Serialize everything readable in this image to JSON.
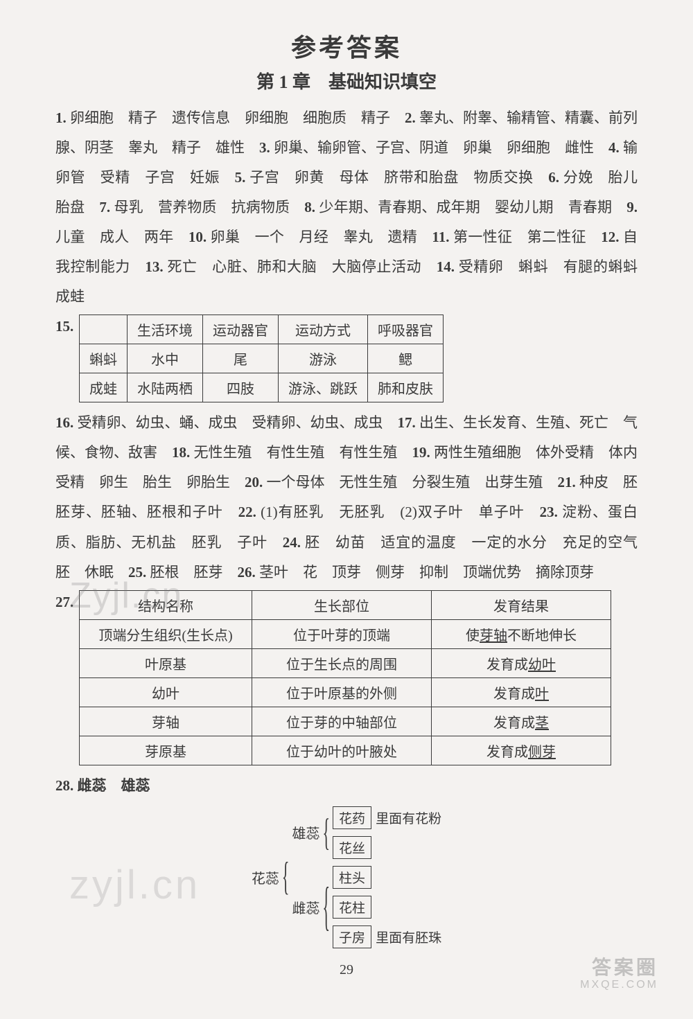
{
  "title": "参考答案",
  "subtitle": "第 1 章　基础知识填空",
  "paragraph1_items": [
    {
      "n": "1.",
      "t": "卵细胞　精子　遗传信息　卵细胞　细胞质　精子"
    },
    {
      "n": "2.",
      "t": "睾丸、附睾、输精管、精囊、前列腺、阴茎　睾丸　精子　雄性"
    },
    {
      "n": "3.",
      "t": "卵巢、输卵管、子宫、阴道　卵巢　卵细胞　雌性"
    },
    {
      "n": "4.",
      "t": "输卵管　受精　子宫　妊娠"
    },
    {
      "n": "5.",
      "t": "子宫　卵黄　母体　脐带和胎盘　物质交换"
    },
    {
      "n": "6.",
      "t": "分娩　胎儿　胎盘"
    },
    {
      "n": "7.",
      "t": "母乳　营养物质　抗病物质"
    },
    {
      "n": "8.",
      "t": "少年期、青春期、成年期　婴幼儿期　青春期"
    },
    {
      "n": "9.",
      "t": "儿童　成人　两年"
    },
    {
      "n": "10.",
      "t": "卵巢　一个　月经　睾丸　遗精"
    },
    {
      "n": "11.",
      "t": "第一性征　第二性征"
    },
    {
      "n": "12.",
      "t": "自我控制能力"
    },
    {
      "n": "13.",
      "t": "死亡　心脏、肺和大脑　大脑停止活动"
    },
    {
      "n": "14.",
      "t": "受精卵　蝌蚪　有腿的蝌蚪　成蛙"
    }
  ],
  "q15_lead": "15.",
  "table15": {
    "headers": [
      "",
      "生活环境",
      "运动器官",
      "运动方式",
      "呼吸器官"
    ],
    "rows": [
      [
        "蝌蚪",
        "水中",
        "尾",
        "游泳",
        "鳃"
      ],
      [
        "成蛙",
        "水陆两栖",
        "四肢",
        "游泳、跳跃",
        "肺和皮肤"
      ]
    ]
  },
  "paragraph2_items": [
    {
      "n": "16.",
      "t": "受精卵、幼虫、蛹、成虫　受精卵、幼虫、成虫"
    },
    {
      "n": "17.",
      "t": "出生、生长发育、生殖、死亡　气候、食物、敌害"
    },
    {
      "n": "18.",
      "t": "无性生殖　有性生殖　有性生殖"
    },
    {
      "n": "19.",
      "t": "两性生殖细胞　体外受精　体内受精　卵生　胎生　卵胎生"
    },
    {
      "n": "20.",
      "t": "一个母体　无性生殖　分裂生殖　出芽生殖"
    },
    {
      "n": "21.",
      "t": "种皮　胚　胚芽、胚轴、胚根和子叶"
    },
    {
      "n": "22.",
      "t": "(1)有胚乳　无胚乳　(2)双子叶　单子叶"
    },
    {
      "n": "23.",
      "t": "淀粉、蛋白质、脂肪、无机盐　胚乳　子叶"
    },
    {
      "n": "24.",
      "t": "胚　幼苗　适宜的温度　一定的水分　充足的空气　胚　休眠"
    },
    {
      "n": "25.",
      "t": "胚根　胚芽"
    },
    {
      "n": "26.",
      "t": "茎叶　花　顶芽　侧芽　抑制　顶端优势　摘除顶芽"
    }
  ],
  "q27_lead": "27.",
  "table27": {
    "headers": [
      "结构名称",
      "生长部位",
      "发育结果"
    ],
    "rows_html": [
      [
        "顶端分生组织(生长点)",
        "位于叶芽的顶端",
        "使<span class='u'>芽轴</span>不断地伸长"
      ],
      [
        "叶原基",
        "位于生长点的周围",
        "发育成<span class='u'>幼叶</span>"
      ],
      [
        "幼叶",
        "位于叶原基的外侧",
        "发育成<span class='u'>叶</span>"
      ],
      [
        "芽轴",
        "位于芽的中轴部位",
        "发育成<span class='u'>茎</span>"
      ],
      [
        "芽原基",
        "位于幼叶的叶腋处",
        "发育成<span class='u'>侧芽</span>"
      ]
    ],
    "col_widths": [
      "220px",
      "230px",
      "230px"
    ]
  },
  "q28_text": "28. 雌蕊　雄蕊",
  "diagram28": {
    "root": "花蕊",
    "branches": [
      {
        "label": "雄蕊",
        "items": [
          {
            "box": "花药",
            "tail": "里面有花粉"
          },
          {
            "box": "花丝",
            "tail": ""
          }
        ]
      },
      {
        "label": "雌蕊",
        "items": [
          {
            "box": "柱头",
            "tail": ""
          },
          {
            "box": "花柱",
            "tail": ""
          },
          {
            "box": "子房",
            "tail": "里面有胚珠"
          }
        ]
      }
    ]
  },
  "page_number": "29",
  "watermarks": {
    "wm1": "Zyjl.cn",
    "wm2": "zyjl.cn",
    "wm3a": "答案圈",
    "wm3b": "MXQE.COM"
  }
}
